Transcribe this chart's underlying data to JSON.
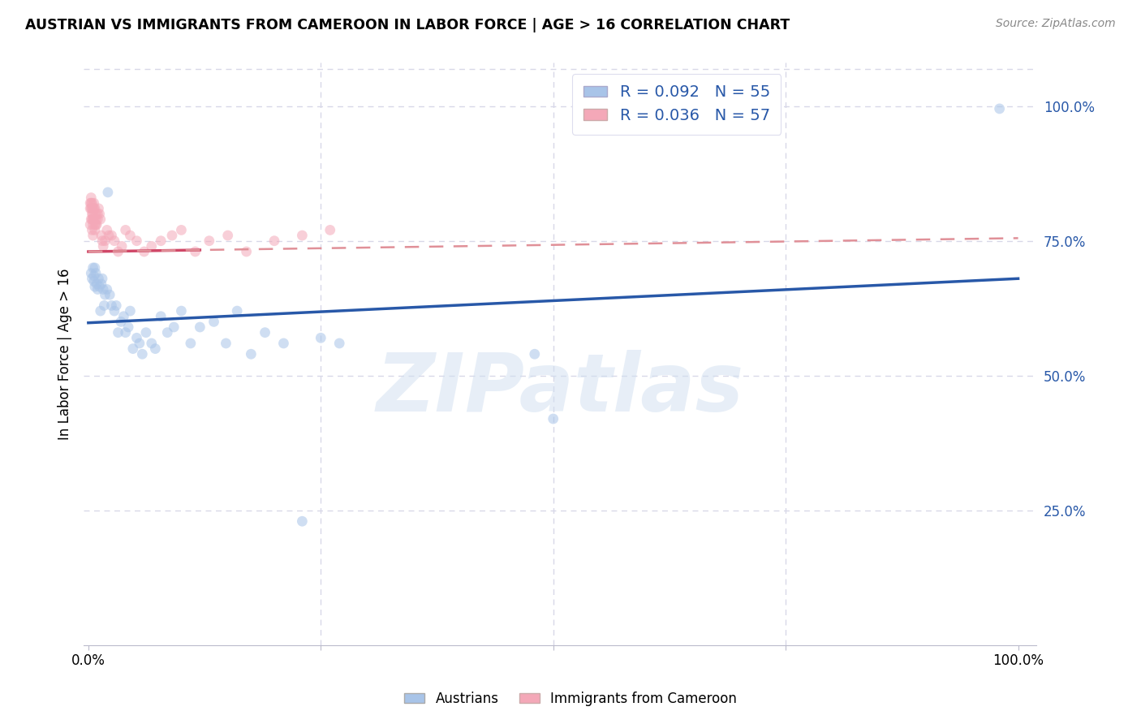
{
  "title": "AUSTRIAN VS IMMIGRANTS FROM CAMEROON IN LABOR FORCE | AGE > 16 CORRELATION CHART",
  "source": "Source: ZipAtlas.com",
  "ylabel": "In Labor Force | Age > 16",
  "blue_label": "Austrians",
  "pink_label": "Immigrants from Cameroon",
  "blue_R": 0.092,
  "blue_N": 55,
  "pink_R": 0.036,
  "pink_N": 57,
  "blue_color": "#a8c4e8",
  "pink_color": "#f4a8b8",
  "blue_line_color": "#2858a8",
  "pink_solid_color": "#d04868",
  "pink_dash_color": "#e09098",
  "watermark_color": "#d0dff0",
  "blue_x": [
    0.003,
    0.004,
    0.005,
    0.006,
    0.006,
    0.007,
    0.007,
    0.008,
    0.009,
    0.01,
    0.011,
    0.012,
    0.013,
    0.014,
    0.015,
    0.016,
    0.017,
    0.018,
    0.02,
    0.021,
    0.023,
    0.025,
    0.028,
    0.03,
    0.032,
    0.035,
    0.038,
    0.04,
    0.043,
    0.045,
    0.048,
    0.052,
    0.055,
    0.058,
    0.062,
    0.068,
    0.072,
    0.078,
    0.085,
    0.092,
    0.1,
    0.11,
    0.12,
    0.135,
    0.148,
    0.16,
    0.175,
    0.19,
    0.21,
    0.23,
    0.25,
    0.27,
    0.48,
    0.5,
    0.98
  ],
  "blue_y": [
    0.69,
    0.68,
    0.7,
    0.685,
    0.675,
    0.665,
    0.7,
    0.69,
    0.67,
    0.66,
    0.68,
    0.665,
    0.62,
    0.67,
    0.68,
    0.66,
    0.63,
    0.65,
    0.66,
    0.84,
    0.65,
    0.63,
    0.62,
    0.63,
    0.58,
    0.6,
    0.61,
    0.58,
    0.59,
    0.62,
    0.55,
    0.57,
    0.56,
    0.54,
    0.58,
    0.56,
    0.55,
    0.61,
    0.58,
    0.59,
    0.62,
    0.56,
    0.59,
    0.6,
    0.56,
    0.62,
    0.54,
    0.58,
    0.56,
    0.23,
    0.57,
    0.56,
    0.54,
    0.42,
    0.995
  ],
  "pink_x": [
    0.002,
    0.002,
    0.002,
    0.003,
    0.003,
    0.003,
    0.003,
    0.004,
    0.004,
    0.004,
    0.004,
    0.004,
    0.005,
    0.005,
    0.005,
    0.005,
    0.005,
    0.006,
    0.006,
    0.006,
    0.007,
    0.007,
    0.007,
    0.008,
    0.008,
    0.008,
    0.009,
    0.01,
    0.01,
    0.011,
    0.012,
    0.013,
    0.014,
    0.015,
    0.016,
    0.018,
    0.02,
    0.022,
    0.025,
    0.028,
    0.032,
    0.036,
    0.04,
    0.045,
    0.052,
    0.06,
    0.068,
    0.078,
    0.09,
    0.1,
    0.115,
    0.13,
    0.15,
    0.17,
    0.2,
    0.23,
    0.26
  ],
  "pink_y": [
    0.78,
    0.81,
    0.82,
    0.79,
    0.81,
    0.82,
    0.83,
    0.79,
    0.8,
    0.81,
    0.82,
    0.77,
    0.78,
    0.79,
    0.8,
    0.81,
    0.76,
    0.79,
    0.81,
    0.82,
    0.78,
    0.77,
    0.81,
    0.8,
    0.79,
    0.78,
    0.78,
    0.79,
    0.8,
    0.81,
    0.8,
    0.79,
    0.76,
    0.75,
    0.74,
    0.75,
    0.77,
    0.76,
    0.76,
    0.75,
    0.73,
    0.74,
    0.77,
    0.76,
    0.75,
    0.73,
    0.74,
    0.75,
    0.76,
    0.77,
    0.73,
    0.75,
    0.76,
    0.73,
    0.75,
    0.76,
    0.77
  ],
  "blue_trend_x0": 0.0,
  "blue_trend_y0": 0.598,
  "blue_trend_x1": 1.0,
  "blue_trend_y1": 0.68,
  "pink_trend_x0": 0.0,
  "pink_trend_y0": 0.73,
  "pink_trend_x1": 1.0,
  "pink_trend_y1": 0.755,
  "xlim": [
    -0.005,
    1.02
  ],
  "ylim": [
    0.0,
    1.08
  ],
  "yticks_right": [
    0.25,
    0.5,
    0.75,
    1.0
  ],
  "ytick_labels_right": [
    "25.0%",
    "50.0%",
    "75.0%",
    "100.0%"
  ],
  "xticks": [
    0.0,
    0.25,
    0.5,
    0.75,
    1.0
  ],
  "xtick_labels": [
    "0.0%",
    "",
    "",
    "",
    "100.0%"
  ],
  "grid_color": "#d8d8e8",
  "bg_color": "#ffffff",
  "marker_size": 85,
  "marker_alpha": 0.55,
  "legend_fontsize": 14,
  "title_fontsize": 12.5,
  "ylabel_fontsize": 12
}
